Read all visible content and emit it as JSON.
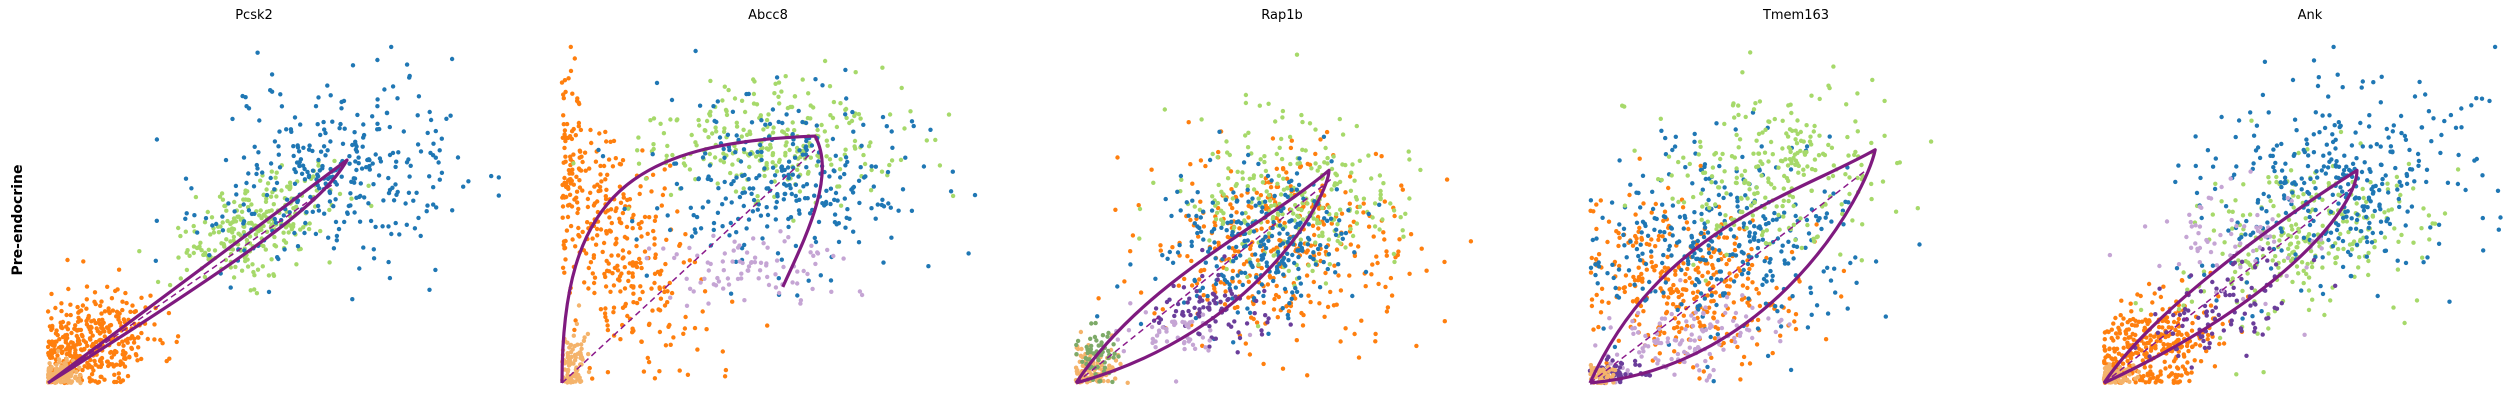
{
  "row_label": "Pre-endocrine",
  "colors": {
    "fit_curve": "#7f1a7f",
    "steady_state": "#8b1a8b",
    "cell_types": [
      "#1f77b4",
      "#ff7f0e",
      "#a6d96a",
      "#c5a5d4",
      "#6a3d9a",
      "#f4b36b",
      "#7daa68"
    ]
  },
  "chart_data": [
    {
      "type": "scatter",
      "title": "Pcsk2",
      "xlabel": "",
      "ylabel": "",
      "axes_visible": false,
      "grid": false,
      "points": 1100,
      "seed": 11,
      "fit_curve": {
        "ctrl": [
          [
            0.0,
            0.0
          ],
          [
            0.45,
            0.45
          ],
          [
            0.6,
            0.6
          ],
          [
            0.65,
            0.65
          ],
          [
            0.6,
            0.53
          ],
          [
            0.45,
            0.38
          ],
          [
            0.0,
            0.0
          ]
        ]
      },
      "steady_state_line": [
        [
          0.0,
          0.0
        ],
        [
          0.62,
          0.58
        ]
      ],
      "clusters": [
        {
          "color_index": 1,
          "weight": 0.36,
          "center": [
            0.09,
            0.11
          ],
          "spread": [
            0.07,
            0.06
          ],
          "rotate": 0.8
        },
        {
          "color_index": 5,
          "weight": 0.1,
          "center": [
            0.03,
            0.03
          ],
          "spread": [
            0.02,
            0.02
          ],
          "rotate": 0
        },
        {
          "color_index": 2,
          "weight": 0.24,
          "center": [
            0.45,
            0.46
          ],
          "spread": [
            0.1,
            0.06
          ],
          "rotate": 0.7
        },
        {
          "color_index": 0,
          "weight": 0.3,
          "center": [
            0.6,
            0.6
          ],
          "spread": [
            0.16,
            0.12
          ],
          "rotate": 0.8
        }
      ]
    },
    {
      "type": "scatter",
      "title": "Abcc8",
      "xlabel": "",
      "ylabel": "",
      "axes_visible": false,
      "grid": false,
      "points": 1100,
      "seed": 23,
      "fit_curve": {
        "ctrl": [
          [
            0.0,
            0.0
          ],
          [
            0.0,
            0.55
          ],
          [
            0.15,
            0.7
          ],
          [
            0.55,
            0.72
          ],
          [
            0.6,
            0.6
          ],
          [
            0.52,
            0.4
          ],
          [
            0.48,
            0.28
          ]
        ]
      },
      "steady_state_line": [
        [
          0.0,
          0.0
        ],
        [
          0.55,
          0.68
        ]
      ],
      "clusters": [
        {
          "color_index": 1,
          "weight": 0.34,
          "center": [
            0.1,
            0.42
          ],
          "spread": [
            0.07,
            0.22
          ],
          "rotate": 0.35
        },
        {
          "color_index": 5,
          "weight": 0.08,
          "center": [
            0.02,
            0.06
          ],
          "spread": [
            0.015,
            0.05
          ],
          "rotate": 0
        },
        {
          "color_index": 2,
          "weight": 0.24,
          "center": [
            0.45,
            0.7
          ],
          "spread": [
            0.14,
            0.08
          ],
          "rotate": 0
        },
        {
          "color_index": 0,
          "weight": 0.26,
          "center": [
            0.48,
            0.58
          ],
          "spread": [
            0.15,
            0.13
          ],
          "rotate": 0
        },
        {
          "color_index": 3,
          "weight": 0.08,
          "center": [
            0.42,
            0.34
          ],
          "spread": [
            0.12,
            0.05
          ],
          "rotate": 0
        }
      ]
    },
    {
      "type": "scatter",
      "title": "Rap1b",
      "xlabel": "",
      "ylabel": "",
      "axes_visible": false,
      "grid": false,
      "points": 1200,
      "seed": 37,
      "fit_curve": {
        "ctrl": [
          [
            0.0,
            0.0
          ],
          [
            0.15,
            0.3
          ],
          [
            0.4,
            0.45
          ],
          [
            0.55,
            0.62
          ],
          [
            0.55,
            0.55
          ],
          [
            0.4,
            0.15
          ],
          [
            0.0,
            0.0
          ]
        ]
      },
      "steady_state_line": [
        [
          0.0,
          0.0
        ],
        [
          0.56,
          0.6
        ]
      ],
      "clusters": [
        {
          "color_index": 5,
          "weight": 0.1,
          "center": [
            0.04,
            0.04
          ],
          "spread": [
            0.025,
            0.035
          ],
          "rotate": 0
        },
        {
          "color_index": 6,
          "weight": 0.05,
          "center": [
            0.05,
            0.08
          ],
          "spread": [
            0.02,
            0.04
          ],
          "rotate": 0
        },
        {
          "color_index": 1,
          "weight": 0.3,
          "center": [
            0.45,
            0.4
          ],
          "spread": [
            0.14,
            0.14
          ],
          "rotate": 0.7
        },
        {
          "color_index": 2,
          "weight": 0.22,
          "center": [
            0.45,
            0.55
          ],
          "spread": [
            0.12,
            0.12
          ],
          "rotate": 0
        },
        {
          "color_index": 0,
          "weight": 0.22,
          "center": [
            0.4,
            0.4
          ],
          "spread": [
            0.12,
            0.1
          ],
          "rotate": 0.7
        },
        {
          "color_index": 4,
          "weight": 0.07,
          "center": [
            0.3,
            0.22
          ],
          "spread": [
            0.07,
            0.05
          ],
          "rotate": 0
        },
        {
          "color_index": 3,
          "weight": 0.04,
          "center": [
            0.22,
            0.15
          ],
          "spread": [
            0.06,
            0.04
          ],
          "rotate": 0
        }
      ]
    },
    {
      "type": "scatter",
      "title": "Tmem163",
      "xlabel": "",
      "ylabel": "",
      "axes_visible": false,
      "grid": false,
      "points": 1200,
      "seed": 41,
      "fit_curve": {
        "ctrl": [
          [
            0.0,
            0.0
          ],
          [
            0.15,
            0.45
          ],
          [
            0.45,
            0.55
          ],
          [
            0.62,
            0.68
          ],
          [
            0.6,
            0.55
          ],
          [
            0.4,
            0.05
          ],
          [
            0.0,
            0.0
          ]
        ]
      },
      "steady_state_line": [
        [
          0.0,
          0.0
        ],
        [
          0.6,
          0.62
        ]
      ],
      "clusters": [
        {
          "color_index": 1,
          "weight": 0.28,
          "center": [
            0.2,
            0.3
          ],
          "spread": [
            0.1,
            0.14
          ],
          "rotate": 0.7
        },
        {
          "color_index": 0,
          "weight": 0.28,
          "center": [
            0.3,
            0.42
          ],
          "spread": [
            0.14,
            0.14
          ],
          "rotate": 0.7
        },
        {
          "color_index": 2,
          "weight": 0.22,
          "center": [
            0.42,
            0.62
          ],
          "spread": [
            0.12,
            0.12
          ],
          "rotate": 0
        },
        {
          "color_index": 3,
          "weight": 0.1,
          "center": [
            0.2,
            0.12
          ],
          "spread": [
            0.1,
            0.05
          ],
          "rotate": 0.4
        },
        {
          "color_index": 4,
          "weight": 0.05,
          "center": [
            0.05,
            0.03
          ],
          "spread": [
            0.03,
            0.02
          ],
          "rotate": 0
        },
        {
          "color_index": 5,
          "weight": 0.04,
          "center": [
            0.02,
            0.02
          ],
          "spread": [
            0.015,
            0.015
          ],
          "rotate": 0
        }
      ]
    },
    {
      "type": "scatter",
      "title": "Ank",
      "xlabel": "",
      "ylabel": "",
      "axes_visible": false,
      "grid": false,
      "points": 1200,
      "seed": 53,
      "fit_curve": {
        "ctrl": [
          [
            0.0,
            0.0
          ],
          [
            0.1,
            0.2
          ],
          [
            0.35,
            0.45
          ],
          [
            0.55,
            0.62
          ],
          [
            0.55,
            0.52
          ],
          [
            0.4,
            0.25
          ],
          [
            0.0,
            0.0
          ]
        ]
      },
      "steady_state_line": [
        [
          0.0,
          0.0
        ],
        [
          0.55,
          0.58
        ]
      ],
      "clusters": [
        {
          "color_index": 1,
          "weight": 0.28,
          "center": [
            0.1,
            0.1
          ],
          "spread": [
            0.08,
            0.06
          ],
          "rotate": 0.7
        },
        {
          "color_index": 5,
          "weight": 0.06,
          "center": [
            0.02,
            0.02
          ],
          "spread": [
            0.02,
            0.015
          ],
          "rotate": 0
        },
        {
          "color_index": 2,
          "weight": 0.22,
          "center": [
            0.45,
            0.45
          ],
          "spread": [
            0.14,
            0.1
          ],
          "rotate": 0.7
        },
        {
          "color_index": 0,
          "weight": 0.3,
          "center": [
            0.52,
            0.58
          ],
          "spread": [
            0.16,
            0.14
          ],
          "rotate": 0.7
        },
        {
          "color_index": 4,
          "weight": 0.08,
          "center": [
            0.25,
            0.22
          ],
          "spread": [
            0.1,
            0.06
          ],
          "rotate": 0.7
        },
        {
          "color_index": 3,
          "weight": 0.06,
          "center": [
            0.3,
            0.4
          ],
          "spread": [
            0.1,
            0.08
          ],
          "rotate": 0
        }
      ]
    }
  ]
}
